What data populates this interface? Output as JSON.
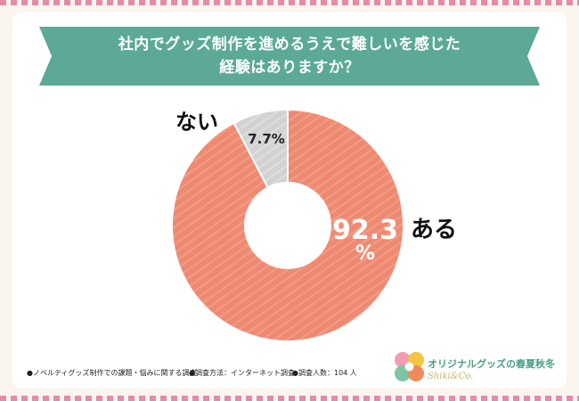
{
  "title": {
    "line1": "社内でグッズ制作を進めるうえで難しいを感じた",
    "line2": "経験はありますか？"
  },
  "chart_data": {
    "type": "pie",
    "variant": "donut",
    "title": "社内でグッズ制作を進めるうえで難しいを感じた経験はありますか？",
    "series": [
      {
        "name": "ある",
        "value": 92.3,
        "value_label": "92.3",
        "unit_label": "%",
        "color": "#ef8a72"
      },
      {
        "name": "ない",
        "value": 7.7,
        "value_label": "7.7%",
        "color": "#d4d4d4"
      }
    ]
  },
  "footnotes": [
    "●ノベルティグッズ制作での課題・悩みに関する調査",
    "●調査方法：インターネット調査",
    "●調査人数：104 人"
  ],
  "brand": {
    "name": "オリジナルグッズの春夏秋冬",
    "sub": "Shiki&Co.",
    "colors": [
      "#f29bb5",
      "#f4c542",
      "#7cc6a5",
      "#f08a5d"
    ]
  },
  "colors": {
    "banner": "#5ba996",
    "border_stripe": "#e58aa8",
    "background": "#fbf5ef"
  }
}
